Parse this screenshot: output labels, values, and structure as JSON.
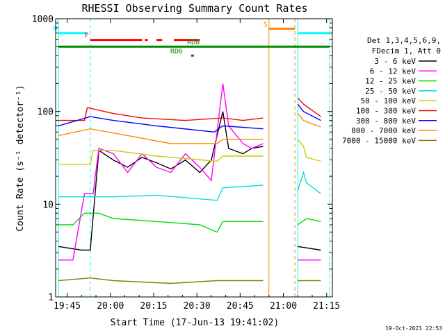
{
  "chart_data": {
    "type": "line",
    "title": "RHESSI Observing Summary Count Rates",
    "xlabel": "Start Time (17-Jun-13 19:41:02)",
    "ylabel": "Count Rate (s⁻¹ detector⁻¹)",
    "y_scale": "log",
    "ylim": [
      1,
      1000
    ],
    "xlim_minutes": [
      0,
      96
    ],
    "x_ticks": [
      "19:45",
      "20:00",
      "20:15",
      "20:30",
      "20:45",
      "21:00",
      "21:15"
    ],
    "y_ticks": [
      "1",
      "10",
      "100",
      "1000"
    ],
    "footer": "19-Oct-2021 22:53",
    "legend_header": [
      "Det 1,3,4,5,6,9,",
      "FDecim 1, Att 0"
    ],
    "grid": false,
    "legend_position": "right",
    "series": [
      {
        "name": "3 - 6 keV",
        "color": "#000000",
        "segments": [
          [
            [
              1,
              3.5
            ],
            [
              9,
              3.2
            ],
            [
              12,
              3.2
            ],
            [
              15,
              38
            ],
            [
              20,
              30
            ],
            [
              25,
              25
            ],
            [
              30,
              32
            ],
            [
              35,
              28
            ],
            [
              40,
              24
            ],
            [
              45,
              30
            ],
            [
              50,
              22
            ],
            [
              54,
              30
            ],
            [
              58,
              100
            ],
            [
              60,
              40
            ],
            [
              65,
              35
            ],
            [
              68,
              40
            ],
            [
              72,
              42
            ]
          ],
          [
            [
              84,
              3.5
            ],
            [
              92,
              3.2
            ]
          ]
        ]
      },
      {
        "name": "6 - 12 keV",
        "color": "#ff00ff",
        "segments": [
          [
            [
              1,
              2.5
            ],
            [
              6,
              2.5
            ],
            [
              10,
              13
            ],
            [
              13,
              13
            ],
            [
              15,
              40
            ],
            [
              20,
              35
            ],
            [
              25,
              22
            ],
            [
              30,
              35
            ],
            [
              35,
              25
            ],
            [
              40,
              22
            ],
            [
              45,
              35
            ],
            [
              50,
              25
            ],
            [
              54,
              18
            ],
            [
              58,
              200
            ],
            [
              60,
              70
            ],
            [
              65,
              45
            ],
            [
              68,
              40
            ],
            [
              72,
              45
            ]
          ],
          [
            [
              84,
              2.5
            ],
            [
              92,
              2.5
            ]
          ]
        ]
      },
      {
        "name": "12 - 25 keV",
        "color": "#00dd00",
        "segments": [
          [
            [
              1,
              6
            ],
            [
              6,
              6
            ],
            [
              10,
              8
            ],
            [
              15,
              8
            ],
            [
              20,
              7
            ],
            [
              35,
              6.5
            ],
            [
              50,
              6
            ],
            [
              56,
              5
            ],
            [
              58,
              6.5
            ],
            [
              72,
              6.5
            ]
          ],
          [
            [
              84,
              6
            ],
            [
              87,
              7
            ],
            [
              92,
              6.5
            ]
          ]
        ]
      },
      {
        "name": "25 - 50 keV",
        "color": "#00dddd",
        "segments": [
          [
            [
              1,
              12
            ],
            [
              20,
              12
            ],
            [
              35,
              12.5
            ],
            [
              56,
              11
            ],
            [
              58,
              15
            ],
            [
              72,
              16
            ]
          ],
          [
            [
              84,
              14
            ],
            [
              86,
              22
            ],
            [
              87,
              17
            ],
            [
              92,
              13
            ]
          ]
        ]
      },
      {
        "name": "50 - 100 keV",
        "color": "#cccc00",
        "segments": [
          [
            [
              1,
              27
            ],
            [
              12,
              27
            ],
            [
              13,
              38
            ],
            [
              20,
              38
            ],
            [
              35,
              33
            ],
            [
              56,
              29
            ],
            [
              58,
              33
            ],
            [
              72,
              33
            ]
          ],
          [
            [
              84,
              50
            ],
            [
              86,
              42
            ],
            [
              87,
              32
            ],
            [
              92,
              29
            ]
          ]
        ]
      },
      {
        "name": "100 - 300 keV",
        "color": "#ff0000",
        "segments": [
          [
            [
              1,
              80
            ],
            [
              10,
              80
            ],
            [
              11,
              110
            ],
            [
              20,
              95
            ],
            [
              30,
              85
            ],
            [
              45,
              80
            ],
            [
              58,
              85
            ],
            [
              65,
              80
            ],
            [
              72,
              85
            ]
          ],
          [
            [
              84,
              140
            ],
            [
              86,
              120
            ],
            [
              92,
              88
            ]
          ]
        ]
      },
      {
        "name": "300 - 800 keV",
        "color": "#0000ff",
        "segments": [
          [
            [
              1,
              70
            ],
            [
              12,
              88
            ],
            [
              20,
              80
            ],
            [
              35,
              70
            ],
            [
              55,
              60
            ],
            [
              58,
              70
            ],
            [
              72,
              65
            ]
          ],
          [
            [
              84,
              120
            ],
            [
              86,
              100
            ],
            [
              92,
              80
            ]
          ]
        ]
      },
      {
        "name": "800 - 7000 keV",
        "color": "#ff8800",
        "segments": [
          [
            [
              1,
              55
            ],
            [
              12,
              65
            ],
            [
              25,
              55
            ],
            [
              40,
              45
            ],
            [
              56,
              45
            ],
            [
              58,
              50
            ],
            [
              72,
              50
            ]
          ],
          [
            [
              84,
              95
            ],
            [
              86,
              80
            ],
            [
              92,
              68
            ]
          ]
        ]
      },
      {
        "name": "7000 - 15000 keV",
        "color": "#808000",
        "segments": [
          [
            [
              1,
              1.5
            ],
            [
              12,
              1.6
            ],
            [
              20,
              1.5
            ],
            [
              40,
              1.4
            ],
            [
              56,
              1.5
            ],
            [
              72,
              1.5
            ]
          ],
          [
            [
              84,
              1.5
            ],
            [
              92,
              1.5
            ]
          ]
        ]
      }
    ],
    "vertical_lines": [
      {
        "x": 1,
        "color": "#00ffff",
        "style": "solid"
      },
      {
        "x": 12,
        "color": "#00ffff",
        "style": "dashed"
      },
      {
        "x": 74,
        "color": "#ff8800",
        "style": "solid"
      },
      {
        "x": 83,
        "color": "#ff8800",
        "style": "dashed"
      },
      {
        "x": 84,
        "color": "#00ffff",
        "style": "solid"
      },
      {
        "x": 95,
        "color": "#00ffff",
        "style": "dashed"
      }
    ],
    "status_bars": [
      {
        "label": "N",
        "color": "#00ffff",
        "y": 700,
        "ranges": [
          [
            1,
            11
          ],
          [
            84,
            95
          ]
        ]
      },
      {
        "label": "S",
        "color": "#ff8800",
        "y": 780,
        "ranges": [
          [
            74,
            83
          ]
        ]
      },
      {
        "label": "F",
        "color": "#ff0000",
        "y": 590,
        "ranges": [
          [
            12,
            30
          ],
          [
            31,
            32
          ],
          [
            35,
            37
          ],
          [
            41,
            50
          ]
        ]
      },
      {
        "label": "RD0",
        "color": "#008800",
        "y": 500,
        "ranges": [
          [
            1,
            95
          ]
        ]
      },
      {
        "label": "RD6",
        "color": "#008800",
        "y": 400,
        "ranges": [
          [
            47,
            48
          ]
        ]
      }
    ]
  }
}
